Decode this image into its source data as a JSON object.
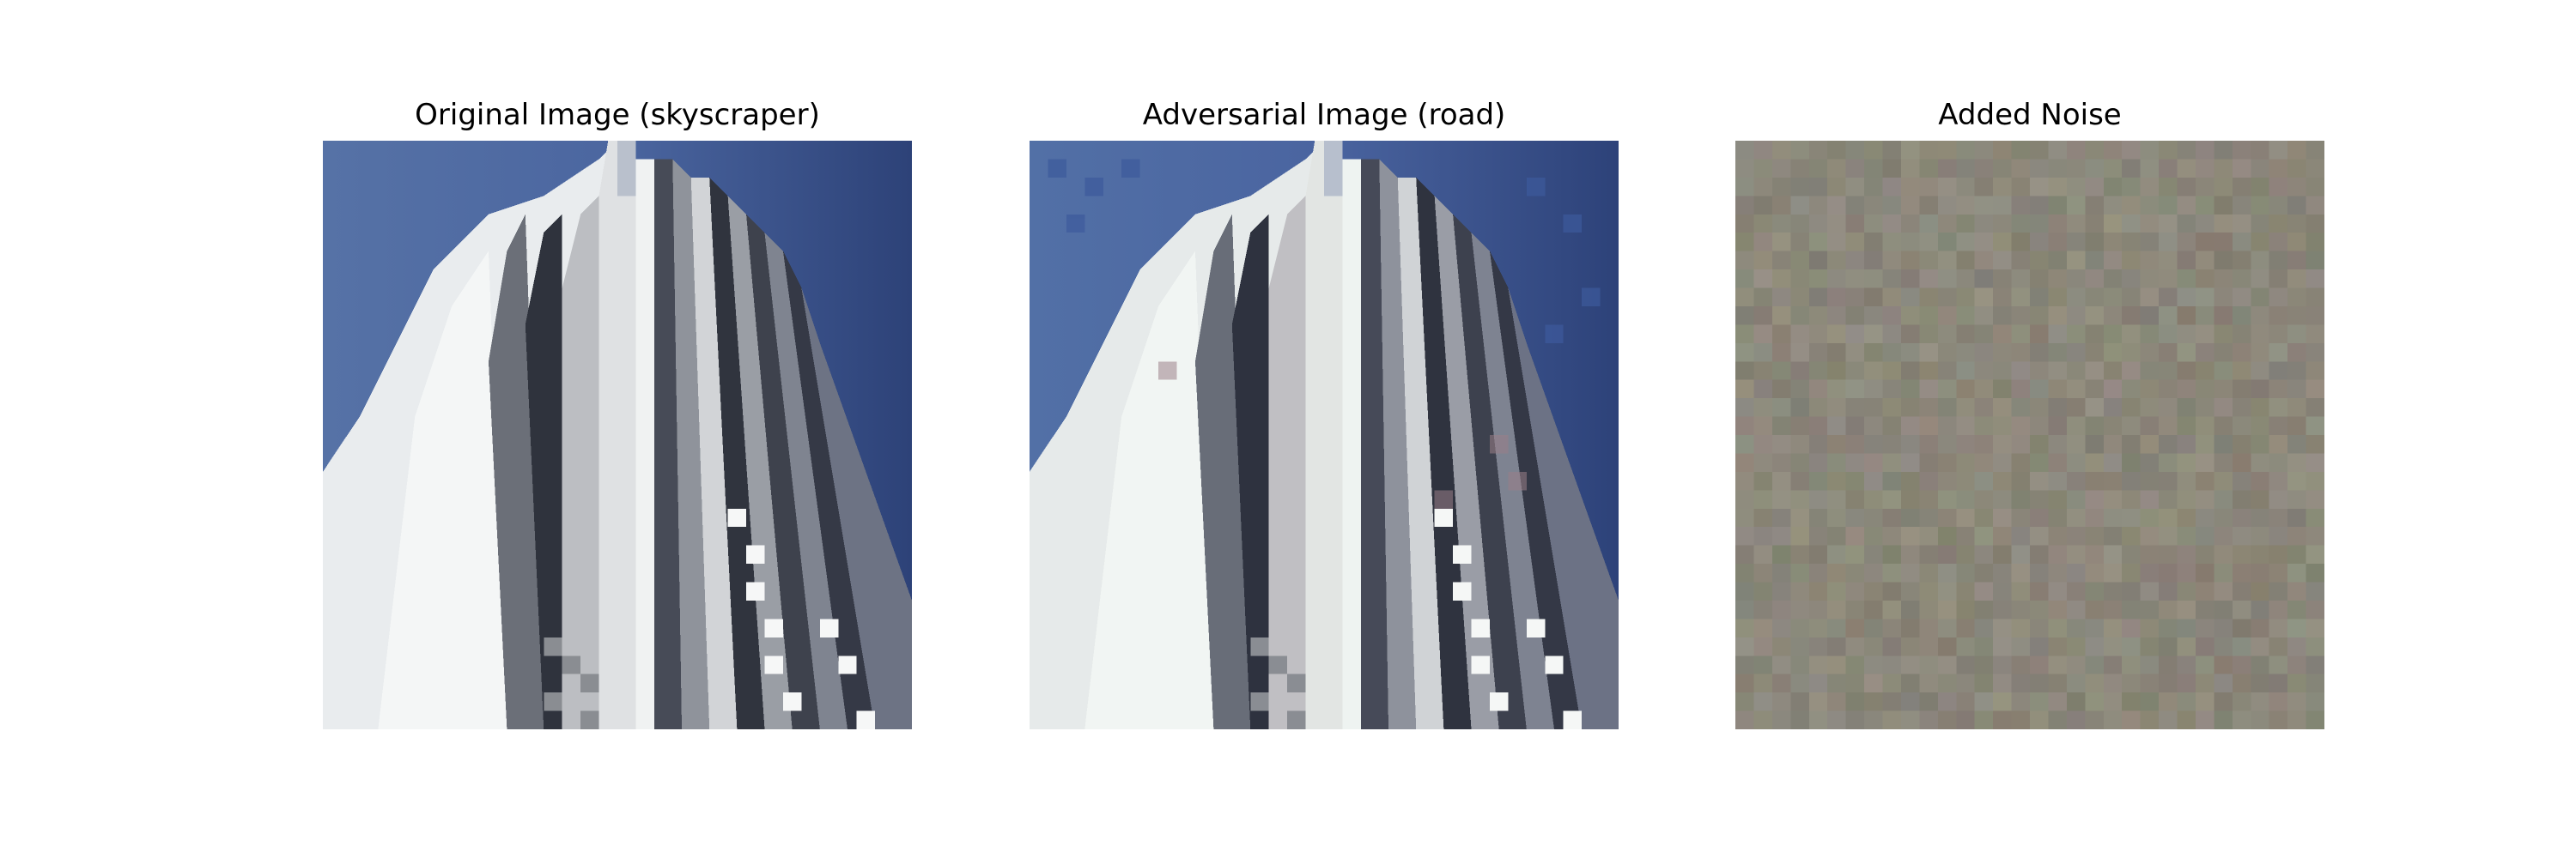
{
  "figure": {
    "panels": [
      {
        "title": "Original Image (skyscraper)"
      },
      {
        "title": "Adversarial Image (road)"
      },
      {
        "title": "Added Noise"
      }
    ]
  },
  "colors": {
    "sky": "#5270a4",
    "sky_dark": "#2d4278",
    "building_white": "#eef0f0",
    "building_gray": "#a8aaad",
    "building_dark": "#3a3e4a",
    "noise_base": "#8b877a"
  }
}
